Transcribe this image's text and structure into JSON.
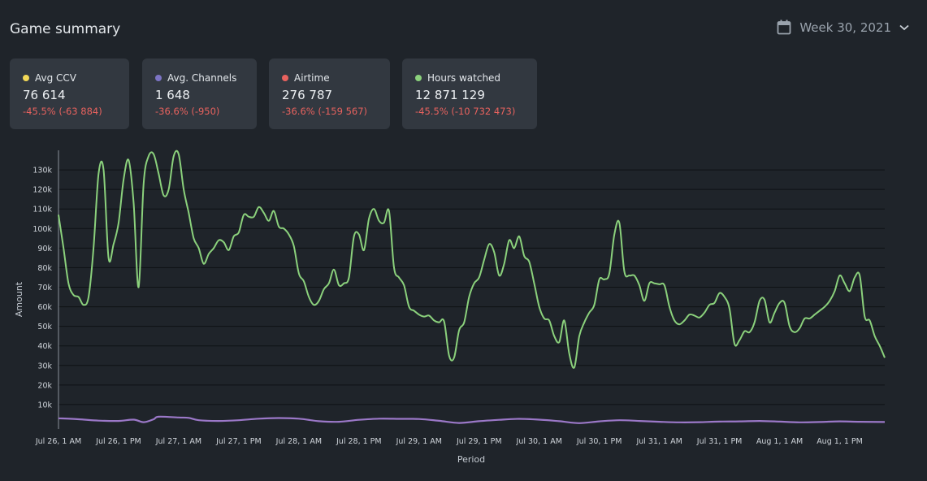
{
  "header": {
    "title": "Game summary",
    "week": "Week 30, 2021",
    "calendar_icon": "calendar-icon",
    "chevron_icon": "chevron-down-icon"
  },
  "cards": [
    {
      "label": "Avg CCV",
      "value": "76 614",
      "delta": "-45.5% (-63 884)",
      "color": "#f2d857"
    },
    {
      "label": "Avg. Channels",
      "value": "1 648",
      "delta": "-36.6% (-950)",
      "color": "#7c74c4"
    },
    {
      "label": "Airtime",
      "value": "276 787",
      "delta": "-36.6% (-159 567)",
      "color": "#e8625e"
    },
    {
      "label": "Hours watched",
      "value": "12 871 129",
      "delta": "-45.5% (-10 732 473)",
      "color": "#8bd17c"
    }
  ],
  "chart_data": {
    "type": "line",
    "title": "",
    "xlabel": "Period",
    "ylabel": "Amount",
    "ylim": [
      0,
      140000
    ],
    "yticks": [
      10000,
      20000,
      30000,
      40000,
      50000,
      60000,
      70000,
      80000,
      90000,
      100000,
      110000,
      120000,
      130000
    ],
    "ytick_labels": [
      "10k",
      "20k",
      "30k",
      "40k",
      "50k",
      "60k",
      "70k",
      "80k",
      "90k",
      "100k",
      "110k",
      "120k",
      "130k"
    ],
    "xtick_labels": [
      "Jul 26, 1 AM",
      "Jul 26, 1 PM",
      "Jul 27, 1 AM",
      "Jul 27, 1 PM",
      "Jul 28, 1 AM",
      "Jul 28, 1 PM",
      "Jul 29, 1 AM",
      "Jul 29, 1 PM",
      "Jul 30, 1 AM",
      "Jul 30, 1 PM",
      "Jul 31, 1 AM",
      "Jul 31, 1 PM",
      "Aug 1, 1 AM",
      "Aug 1, 1 PM"
    ],
    "x_hours_offset": [
      0,
      12,
      24,
      36,
      48,
      60,
      72,
      84,
      96,
      108,
      120,
      132,
      144,
      156
    ],
    "grid": true,
    "series": [
      {
        "color": "#8bd17c",
        "points": [
          [
            0,
            107000
          ],
          [
            1,
            90000
          ],
          [
            2,
            72000
          ],
          [
            3,
            66000
          ],
          [
            4,
            65000
          ],
          [
            5,
            61000
          ],
          [
            6,
            65000
          ],
          [
            7,
            90000
          ],
          [
            8,
            128000
          ],
          [
            9,
            130000
          ],
          [
            10,
            85000
          ],
          [
            11,
            92000
          ],
          [
            12,
            103000
          ],
          [
            13,
            125000
          ],
          [
            14,
            135000
          ],
          [
            15,
            113000
          ],
          [
            16,
            70000
          ],
          [
            17,
            123000
          ],
          [
            18,
            137000
          ],
          [
            19,
            138000
          ],
          [
            20,
            128000
          ],
          [
            21,
            117000
          ],
          [
            22,
            120000
          ],
          [
            23,
            137000
          ],
          [
            24,
            138000
          ],
          [
            25,
            120000
          ],
          [
            26,
            108000
          ],
          [
            27,
            95000
          ],
          [
            28,
            90000
          ],
          [
            29,
            82000
          ],
          [
            30,
            87000
          ],
          [
            31,
            90000
          ],
          [
            32,
            94000
          ],
          [
            33,
            93000
          ],
          [
            34,
            89000
          ],
          [
            35,
            96000
          ],
          [
            36,
            98000
          ],
          [
            37,
            107000
          ],
          [
            38,
            106000
          ],
          [
            39,
            106000
          ],
          [
            40,
            111000
          ],
          [
            41,
            108000
          ],
          [
            42,
            104000
          ],
          [
            43,
            109000
          ],
          [
            44,
            101000
          ],
          [
            45,
            100000
          ],
          [
            46,
            97000
          ],
          [
            47,
            91000
          ],
          [
            48,
            77000
          ],
          [
            49,
            73000
          ],
          [
            50,
            65000
          ],
          [
            51,
            61000
          ],
          [
            52,
            63000
          ],
          [
            53,
            69000
          ],
          [
            54,
            72000
          ],
          [
            55,
            79000
          ],
          [
            56,
            71000
          ],
          [
            57,
            72000
          ],
          [
            58,
            75000
          ],
          [
            59,
            96000
          ],
          [
            60,
            97000
          ],
          [
            61,
            89000
          ],
          [
            62,
            105000
          ],
          [
            63,
            110000
          ],
          [
            64,
            104000
          ],
          [
            65,
            103000
          ],
          [
            66,
            109000
          ],
          [
            67,
            80000
          ],
          [
            68,
            75000
          ],
          [
            69,
            71000
          ],
          [
            70,
            60000
          ],
          [
            71,
            58000
          ],
          [
            72,
            56000
          ],
          [
            73,
            55000
          ],
          [
            74,
            55500
          ],
          [
            75,
            53000
          ],
          [
            76,
            52000
          ],
          [
            77,
            52500
          ],
          [
            78,
            35000
          ],
          [
            79,
            34000
          ],
          [
            80,
            48000
          ],
          [
            81,
            52000
          ],
          [
            82,
            65000
          ],
          [
            83,
            72000
          ],
          [
            84,
            75000
          ],
          [
            85,
            84000
          ],
          [
            86,
            92000
          ],
          [
            87,
            88000
          ],
          [
            88,
            76000
          ],
          [
            89,
            82000
          ],
          [
            90,
            94000
          ],
          [
            91,
            90000
          ],
          [
            92,
            96000
          ],
          [
            93,
            86000
          ],
          [
            94,
            83000
          ],
          [
            95,
            72000
          ],
          [
            96,
            60000
          ],
          [
            97,
            54000
          ],
          [
            98,
            53000
          ],
          [
            99,
            45000
          ],
          [
            100,
            42000
          ],
          [
            101,
            53000
          ],
          [
            102,
            36000
          ],
          [
            103,
            29000
          ],
          [
            104,
            45000
          ],
          [
            105,
            52000
          ],
          [
            106,
            57000
          ],
          [
            107,
            61000
          ],
          [
            108,
            74000
          ],
          [
            109,
            74000
          ],
          [
            110,
            77000
          ],
          [
            111,
            97000
          ],
          [
            112,
            103000
          ],
          [
            113,
            78000
          ],
          [
            114,
            76000
          ],
          [
            115,
            76000
          ],
          [
            116,
            71000
          ],
          [
            117,
            63000
          ],
          [
            118,
            72000
          ],
          [
            119,
            72000
          ],
          [
            120,
            71500
          ],
          [
            121,
            71000
          ],
          [
            122,
            60000
          ],
          [
            123,
            53000
          ],
          [
            124,
            51000
          ],
          [
            125,
            53000
          ],
          [
            126,
            56000
          ],
          [
            127,
            55500
          ],
          [
            128,
            54500
          ],
          [
            129,
            57000
          ],
          [
            130,
            61000
          ],
          [
            131,
            62000
          ],
          [
            132,
            67000
          ],
          [
            133,
            65000
          ],
          [
            134,
            59000
          ],
          [
            135,
            41000
          ],
          [
            136,
            43000
          ],
          [
            137,
            47500
          ],
          [
            138,
            47000
          ],
          [
            139,
            52000
          ],
          [
            140,
            63000
          ],
          [
            141,
            63500
          ],
          [
            142,
            52000
          ],
          [
            143,
            57000
          ],
          [
            144,
            62000
          ],
          [
            145,
            62000
          ],
          [
            146,
            50000
          ],
          [
            147,
            47000
          ],
          [
            148,
            49000
          ],
          [
            149,
            54000
          ],
          [
            150,
            54000
          ],
          [
            151,
            56000
          ],
          [
            152,
            58000
          ],
          [
            153,
            60000
          ],
          [
            154,
            63000
          ],
          [
            155,
            68000
          ],
          [
            156,
            76000
          ],
          [
            157,
            72000
          ],
          [
            158,
            68000
          ],
          [
            159,
            75000
          ],
          [
            160,
            76000
          ],
          [
            161,
            55000
          ],
          [
            162,
            53000
          ],
          [
            163,
            45000
          ],
          [
            164,
            40000
          ],
          [
            165,
            34000
          ]
        ]
      },
      {
        "color": "#9b78c8",
        "points": [
          [
            0,
            3000
          ],
          [
            4,
            2500
          ],
          [
            8,
            1800
          ],
          [
            12,
            1600
          ],
          [
            15,
            2300
          ],
          [
            17,
            1000
          ],
          [
            19,
            2500
          ],
          [
            20,
            3800
          ],
          [
            24,
            3400
          ],
          [
            26,
            3200
          ],
          [
            28,
            2000
          ],
          [
            32,
            1600
          ],
          [
            36,
            2000
          ],
          [
            40,
            2800
          ],
          [
            44,
            3100
          ],
          [
            48,
            2800
          ],
          [
            52,
            1500
          ],
          [
            56,
            1200
          ],
          [
            60,
            2200
          ],
          [
            64,
            2800
          ],
          [
            68,
            2700
          ],
          [
            72,
            2600
          ],
          [
            76,
            1700
          ],
          [
            80,
            600
          ],
          [
            84,
            1500
          ],
          [
            88,
            2200
          ],
          [
            92,
            2700
          ],
          [
            96,
            2300
          ],
          [
            100,
            1500
          ],
          [
            104,
            500
          ],
          [
            108,
            1400
          ],
          [
            112,
            2000
          ],
          [
            116,
            1600
          ],
          [
            120,
            1200
          ],
          [
            124,
            900
          ],
          [
            128,
            1000
          ],
          [
            132,
            1300
          ],
          [
            136,
            1400
          ],
          [
            140,
            1600
          ],
          [
            144,
            1300
          ],
          [
            148,
            900
          ],
          [
            152,
            1100
          ],
          [
            156,
            1400
          ],
          [
            160,
            1200
          ],
          [
            165,
            1100
          ]
        ]
      }
    ]
  }
}
